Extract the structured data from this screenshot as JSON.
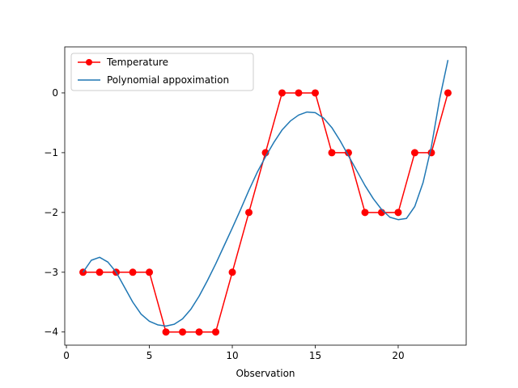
{
  "chart_data": {
    "type": "line",
    "title": "",
    "xlabel": "Observation",
    "ylabel": "",
    "xlim": [
      -0.1,
      24.1
    ],
    "ylim": [
      -4.22,
      0.77
    ],
    "x_ticks": [
      0,
      5,
      10,
      15,
      20
    ],
    "y_ticks": [
      -4,
      -3,
      -2,
      -1,
      0
    ],
    "grid": false,
    "legend_position": "upper-left",
    "series": [
      {
        "name": "Temperature",
        "style": "line-with-markers",
        "color": "#ff0000",
        "x": [
          1,
          2,
          3,
          4,
          5,
          6,
          7,
          8,
          9,
          10,
          11,
          12,
          13,
          14,
          15,
          16,
          17,
          18,
          19,
          20,
          21,
          22,
          23
        ],
        "y": [
          -3,
          -3,
          -3,
          -3,
          -3,
          -4,
          -4,
          -4,
          -4,
          -3,
          -2,
          -1,
          0,
          0,
          0,
          -1,
          -1,
          -2,
          -2,
          -2,
          -1,
          -1,
          0
        ]
      },
      {
        "name": "Polynomial appoximation",
        "style": "line",
        "color": "#1f77b4",
        "x": [
          1.0,
          1.5,
          2.0,
          2.5,
          3.0,
          3.5,
          4.0,
          4.5,
          5.0,
          5.5,
          6.0,
          6.5,
          7.0,
          7.5,
          8.0,
          8.5,
          9.0,
          9.5,
          10.0,
          10.5,
          11.0,
          11.5,
          12.0,
          12.5,
          13.0,
          13.5,
          14.0,
          14.5,
          15.0,
          15.5,
          16.0,
          16.5,
          17.0,
          17.5,
          18.0,
          18.5,
          19.0,
          19.5,
          20.0,
          20.5,
          21.0,
          21.5,
          22.0,
          22.5,
          23.0
        ],
        "y": [
          -3.0,
          -2.8,
          -2.75,
          -2.83,
          -3.0,
          -3.25,
          -3.5,
          -3.7,
          -3.82,
          -3.88,
          -3.9,
          -3.87,
          -3.78,
          -3.62,
          -3.4,
          -3.14,
          -2.86,
          -2.56,
          -2.26,
          -1.95,
          -1.63,
          -1.33,
          -1.07,
          -0.83,
          -0.62,
          -0.47,
          -0.37,
          -0.32,
          -0.33,
          -0.42,
          -0.58,
          -0.8,
          -1.05,
          -1.3,
          -1.55,
          -1.77,
          -1.95,
          -2.08,
          -2.12,
          -2.1,
          -1.9,
          -1.5,
          -0.9,
          -0.1,
          0.55
        ]
      }
    ]
  }
}
